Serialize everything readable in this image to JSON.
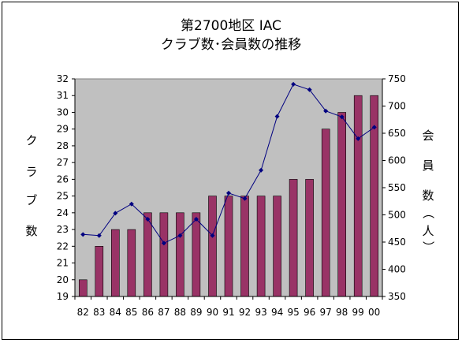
{
  "chart_data": {
    "type": "bar+line",
    "title_line1": "第2700地区 IAC",
    "title_line2": "クラブ数･会員数の推移",
    "ylabel_left": [
      "ク",
      "ラ",
      "ブ",
      "数"
    ],
    "ylabel_right": [
      "会",
      "員",
      "数",
      "（",
      "人",
      "）"
    ],
    "categories": [
      "82",
      "83",
      "84",
      "85",
      "86",
      "87",
      "88",
      "89",
      "90",
      "91",
      "92",
      "93",
      "94",
      "95",
      "96",
      "97",
      "98",
      "99",
      "00"
    ],
    "ylim_left": [
      19,
      32
    ],
    "yticks_left": [
      "19",
      "20",
      "21",
      "22",
      "23",
      "24",
      "25",
      "26",
      "27",
      "28",
      "29",
      "30",
      "31",
      "32"
    ],
    "ylim_right": [
      350,
      750
    ],
    "yticks_right": [
      "350",
      "400",
      "450",
      "500",
      "550",
      "600",
      "650",
      "700",
      "750"
    ],
    "series": [
      {
        "kind": "bar",
        "axis": "left",
        "values": [
          20,
          22,
          23,
          23,
          24,
          24,
          24,
          24,
          25,
          25,
          25,
          25,
          25,
          26,
          26,
          29,
          30,
          31,
          31
        ]
      },
      {
        "kind": "line",
        "axis": "right",
        "values": [
          464,
          462,
          503,
          520,
          492,
          448,
          462,
          492,
          462,
          540,
          530,
          582,
          681,
          740,
          730,
          691,
          680,
          640,
          661
        ]
      }
    ],
    "grid": false,
    "legend": "none",
    "colors": {
      "plot_bg": "#c0c0c0",
      "bar_fill": "#993366",
      "bar_stroke": "#000000",
      "line": "#000080",
      "marker": "#000080"
    }
  }
}
